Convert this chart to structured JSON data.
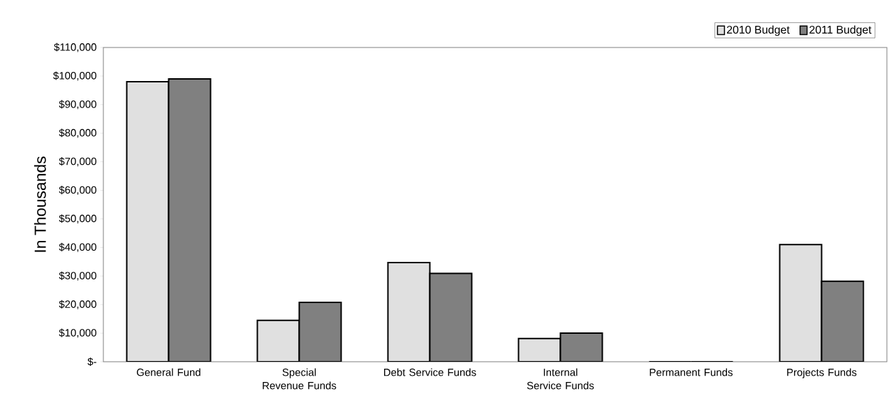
{
  "chart_data": {
    "type": "bar",
    "ylabel": "In Thousands",
    "categories": [
      "General Fund",
      "Special Revenue Funds",
      "Debt Service Funds",
      "Internal Service Funds",
      "Permanent Funds",
      "Projects Funds"
    ],
    "series": [
      {
        "name": "2010 Budget",
        "color": "#e0e0e0",
        "values": [
          98000,
          14500,
          34700,
          8100,
          0,
          41000
        ]
      },
      {
        "name": "2011 Budget",
        "color": "#808080",
        "values": [
          99000,
          20800,
          30900,
          10000,
          0,
          28200
        ]
      }
    ],
    "ylim": [
      0,
      110000
    ],
    "yticks": [
      {
        "value": 0,
        "label": "$-"
      },
      {
        "value": 10000,
        "label": "$10,000"
      },
      {
        "value": 20000,
        "label": "$20,000"
      },
      {
        "value": 30000,
        "label": "$30,000"
      },
      {
        "value": 40000,
        "label": "$40,000"
      },
      {
        "value": 50000,
        "label": "$50,000"
      },
      {
        "value": 60000,
        "label": "$60,000"
      },
      {
        "value": 70000,
        "label": "$70,000"
      },
      {
        "value": 80000,
        "label": "$80,000"
      },
      {
        "value": 90000,
        "label": "$90,000"
      },
      {
        "value": 100000,
        "label": "$100,000"
      },
      {
        "value": 110000,
        "label": "$110,000"
      }
    ],
    "grid": false,
    "legend": "top right"
  }
}
